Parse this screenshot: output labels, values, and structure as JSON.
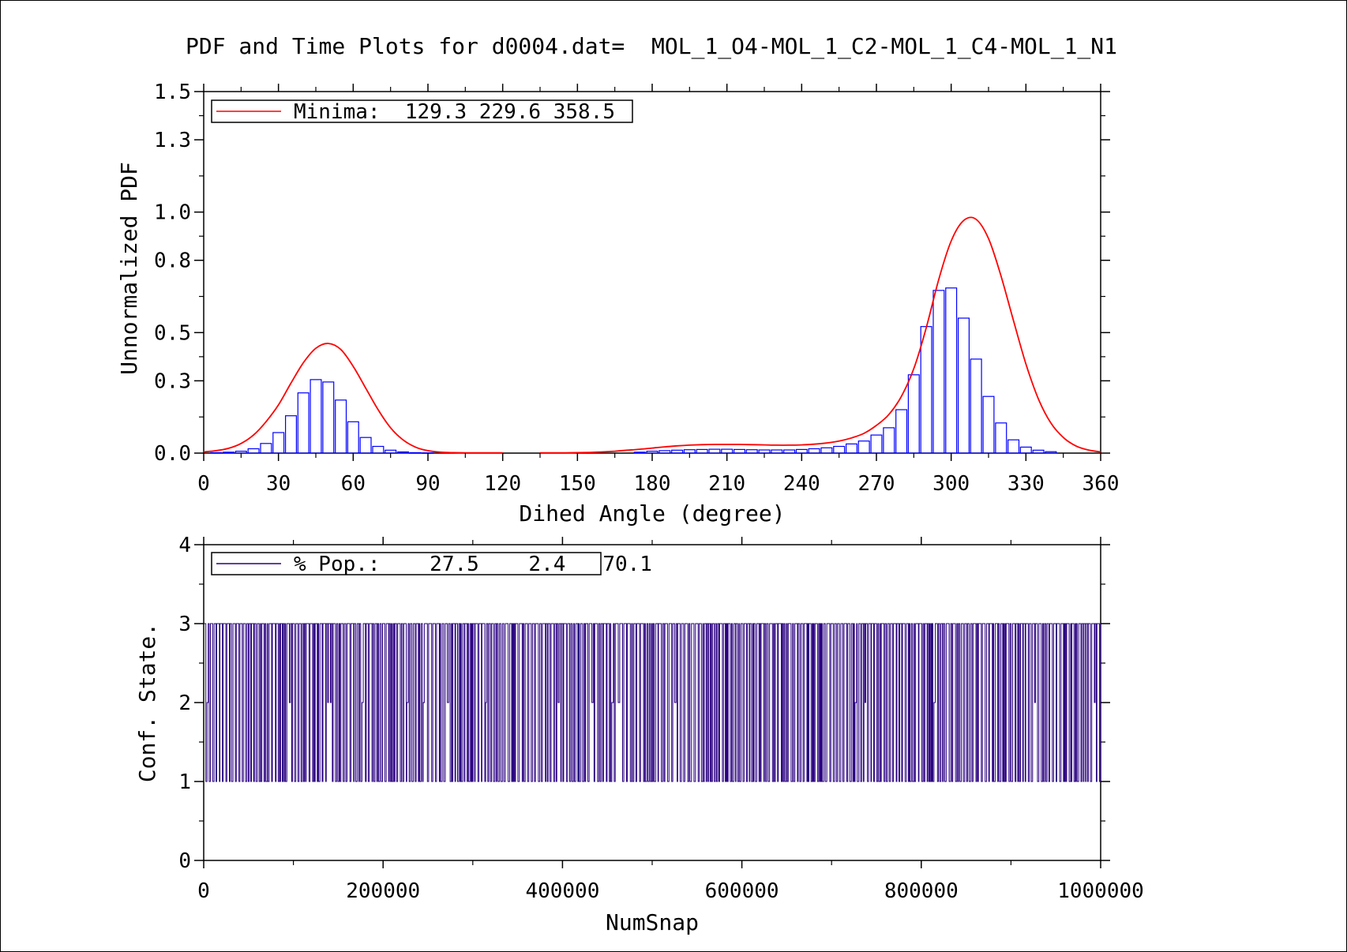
{
  "title": "PDF and Time Plots for d0004.dat=  MOL_1_O4-MOL_1_C2-MOL_1_C4-MOL_1_N1",
  "chart_data": [
    {
      "type": "bar",
      "xlabel": "Dihed Angle (degree)",
      "ylabel": "Unnormalized PDF",
      "xlim": [
        0,
        360
      ],
      "ylim": [
        0,
        1.5
      ],
      "xticks": [
        0,
        30,
        60,
        90,
        120,
        150,
        180,
        210,
        240,
        270,
        300,
        330,
        360
      ],
      "yticks": [
        0.0,
        0.3,
        0.5,
        0.8,
        1.0,
        1.3,
        1.5
      ],
      "ytick_labels": [
        "0.0",
        "0.3",
        "0.5",
        "0.8",
        "1.0",
        "1.3",
        "1.5"
      ],
      "legend": {
        "placement": "top-left",
        "label": "Minima:  129.3 229.6 358.5"
      },
      "colors": {
        "curve": "#ff0000",
        "bars": "#0000ff"
      },
      "bar_width": 5,
      "histogram": {
        "x": [
          5,
          10,
          15,
          20,
          25,
          30,
          35,
          40,
          45,
          50,
          55,
          60,
          65,
          70,
          75,
          80,
          85,
          90,
          175,
          180,
          185,
          190,
          195,
          200,
          205,
          210,
          215,
          220,
          225,
          230,
          235,
          240,
          245,
          250,
          255,
          260,
          265,
          270,
          275,
          280,
          285,
          290,
          295,
          300,
          305,
          310,
          315,
          320,
          325,
          330,
          335,
          340
        ],
        "values": [
          0.002,
          0.004,
          0.008,
          0.018,
          0.04,
          0.085,
          0.155,
          0.25,
          0.305,
          0.295,
          0.22,
          0.13,
          0.065,
          0.028,
          0.012,
          0.005,
          0.002,
          0.001,
          0.004,
          0.008,
          0.01,
          0.012,
          0.014,
          0.015,
          0.016,
          0.016,
          0.015,
          0.014,
          0.013,
          0.013,
          0.013,
          0.015,
          0.018,
          0.022,
          0.028,
          0.038,
          0.05,
          0.075,
          0.105,
          0.18,
          0.325,
          0.525,
          0.675,
          0.685,
          0.56,
          0.39,
          0.235,
          0.125,
          0.055,
          0.025,
          0.012,
          0.006
        ]
      },
      "curve": {
        "x": [
          0,
          5,
          10,
          15,
          20,
          25,
          30,
          35,
          40,
          45,
          50,
          55,
          60,
          65,
          70,
          75,
          80,
          85,
          90,
          95,
          100,
          105,
          110,
          115,
          120,
          130,
          135,
          140,
          145,
          150,
          155,
          160,
          165,
          170,
          175,
          180,
          185,
          190,
          195,
          200,
          205,
          210,
          215,
          220,
          225,
          230,
          235,
          240,
          245,
          250,
          255,
          260,
          265,
          270,
          275,
          280,
          285,
          290,
          295,
          300,
          305,
          310,
          315,
          320,
          325,
          330,
          335,
          340,
          345,
          350,
          355,
          360
        ],
        "values": [
          0.005,
          0.01,
          0.02,
          0.04,
          0.075,
          0.13,
          0.2,
          0.29,
          0.375,
          0.435,
          0.455,
          0.43,
          0.36,
          0.27,
          0.18,
          0.105,
          0.055,
          0.025,
          0.01,
          0.004,
          0.002,
          0.001,
          0.001,
          0.001,
          0.001,
          null,
          0.001,
          0.001,
          0.001,
          0.002,
          0.003,
          0.005,
          0.008,
          0.012,
          0.016,
          0.021,
          0.026,
          0.03,
          0.033,
          0.035,
          0.036,
          0.036,
          0.036,
          0.035,
          0.034,
          0.033,
          0.033,
          0.034,
          0.037,
          0.042,
          0.05,
          0.063,
          0.082,
          0.115,
          0.16,
          0.235,
          0.35,
          0.52,
          0.72,
          0.88,
          0.965,
          0.97,
          0.89,
          0.735,
          0.55,
          0.37,
          0.225,
          0.125,
          0.065,
          0.03,
          0.013,
          0.005
        ]
      }
    },
    {
      "type": "line",
      "xlabel": "NumSnap",
      "ylabel": "Conf. State.",
      "xlim": [
        0,
        1000000
      ],
      "ylim": [
        0,
        4
      ],
      "xticks": [
        0,
        200000,
        400000,
        600000,
        800000,
        1000000
      ],
      "yticks": [
        0,
        1,
        2,
        3,
        4
      ],
      "legend": {
        "placement": "top-left",
        "label": "% Pop.:    27.5    2.4   70.1"
      },
      "colors": {
        "line": "#2a0080"
      },
      "states": [
        1,
        2,
        3
      ],
      "population_percent": [
        27.5,
        2.4,
        70.1
      ]
    }
  ]
}
